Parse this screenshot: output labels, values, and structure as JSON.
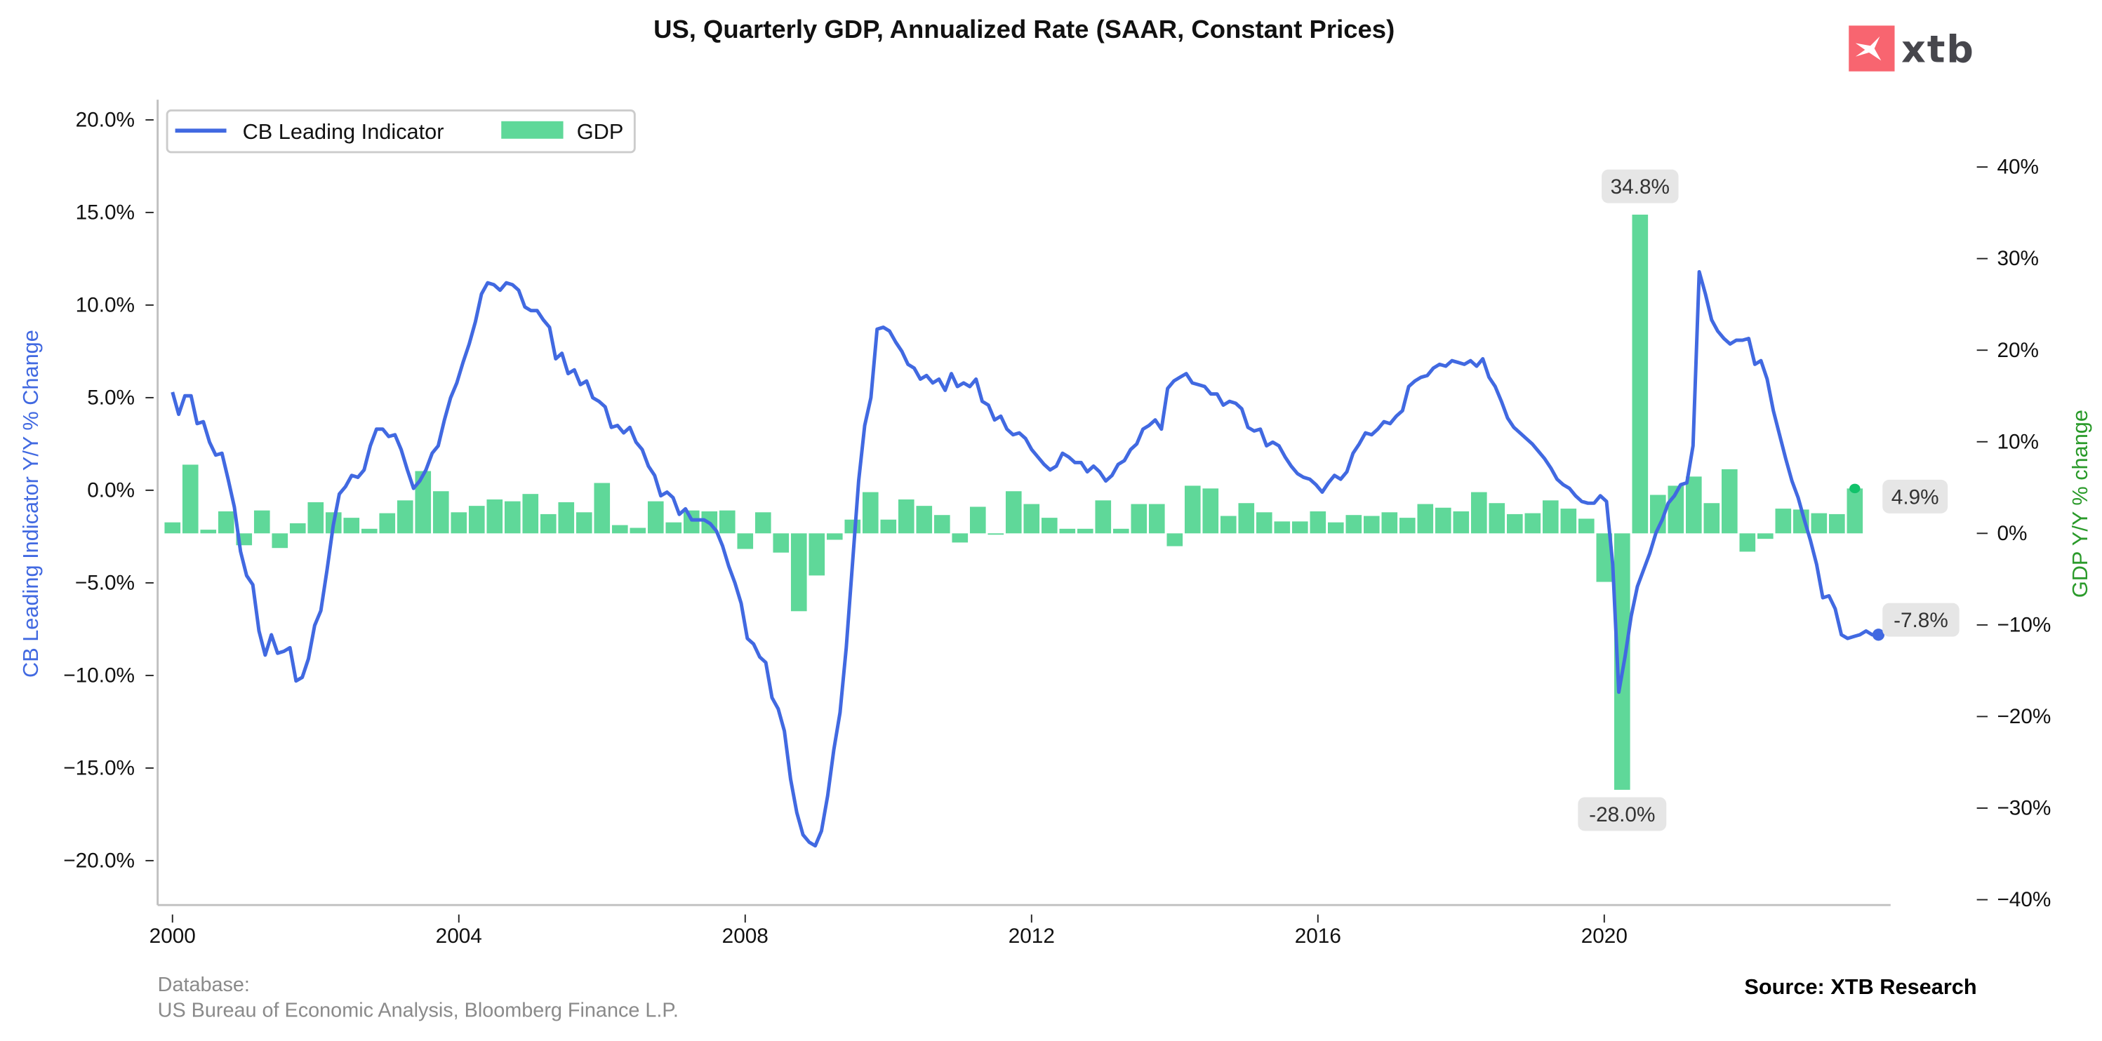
{
  "header": {
    "title": "US, Quarterly GDP, Annualized Rate (SAAR, Constant Prices)"
  },
  "logo": {
    "text": "xtb",
    "brand_color": "#f86570"
  },
  "footer": {
    "database_label": "Database:",
    "database_sources": "US Bureau of Economic Analysis, Bloomberg Finance L.P.",
    "source": "Source: XTB Research"
  },
  "chart_data": {
    "type": "bar+line",
    "title": "US, Quarterly GDP, Annualized Rate (SAAR, Constant Prices)",
    "xlabel": "",
    "ylabel_left": "CB Leading Indicator Y/Y % Change",
    "ylabel_right": "GDP Y/Y % change",
    "ylim_left": [
      -22.5,
      21.0
    ],
    "ylim_right": [
      -40,
      40
    ],
    "yticks_left": [
      "20.0%",
      "15.0%",
      "10.0%",
      "5.0%",
      "0.0%",
      "−5.0%",
      "−10.0%",
      "−15.0%",
      "−20.0%"
    ],
    "yticks_left_values": [
      20,
      15,
      10,
      5,
      0,
      -5,
      -10,
      -15,
      -20
    ],
    "yticks_right": [
      "40%",
      "30%",
      "20%",
      "10%",
      "0%",
      "−10%",
      "−20%",
      "−30%",
      "−40%"
    ],
    "yticks_right_values": [
      40,
      30,
      20,
      10,
      0,
      -10,
      -20,
      -30,
      -40
    ],
    "xlim": [
      2000.0,
      2024.0
    ],
    "xticks": [
      "2000",
      "2004",
      "2008",
      "2012",
      "2016",
      "2020"
    ],
    "xticks_values": [
      2000,
      2004,
      2008,
      2012,
      2016,
      2020
    ],
    "grid": false,
    "legend": {
      "position": "top-left",
      "entries": [
        {
          "name": "CB Leading Indicator",
          "color": "#4169e1",
          "kind": "line"
        },
        {
          "name": "GDP",
          "color": "#5fd899",
          "kind": "bar"
        }
      ]
    },
    "colors": {
      "line": "#4169e1",
      "bars": "#5fd899",
      "last_bar_marker": "#11c26a",
      "left_label": "#4169e1",
      "right_label": "#2a9a2a",
      "annotation_bg": "#e6e6e6"
    },
    "annotations": [
      {
        "text": "34.8%",
        "series": "GDP",
        "x": 2020.5
      },
      {
        "text": "-28.0%",
        "series": "GDP",
        "x": 2020.25
      },
      {
        "text": "4.9%",
        "series": "GDP",
        "x": 2023.5,
        "position": "right-end"
      },
      {
        "text": "-7.8%",
        "series": "CB Leading Indicator",
        "x": 2023.67,
        "position": "right-end"
      }
    ],
    "series": [
      {
        "name": "GDP",
        "axis": "right",
        "x_start": 2000.0,
        "x_step": 0.25,
        "values": [
          1.2,
          7.5,
          0.4,
          2.4,
          -1.3,
          2.5,
          -1.6,
          1.1,
          3.4,
          2.3,
          1.7,
          0.5,
          2.2,
          3.6,
          6.8,
          4.6,
          2.3,
          3.0,
          3.7,
          3.5,
          4.3,
          2.1,
          3.4,
          2.3,
          5.5,
          0.9,
          0.6,
          3.5,
          1.2,
          2.5,
          2.4,
          2.5,
          -1.7,
          2.3,
          -2.1,
          -8.5,
          -4.6,
          -0.7,
          1.5,
          4.5,
          1.5,
          3.7,
          3.0,
          2.0,
          -1.0,
          2.9,
          -0.1,
          4.6,
          3.2,
          1.7,
          0.5,
          0.5,
          3.6,
          0.5,
          3.2,
          3.2,
          -1.4,
          5.2,
          4.9,
          1.9,
          3.3,
          2.3,
          1.3,
          1.3,
          2.4,
          1.2,
          2.0,
          1.9,
          2.3,
          1.7,
          3.2,
          2.8,
          2.4,
          4.5,
          3.3,
          2.1,
          2.2,
          3.6,
          2.7,
          1.6,
          -5.3,
          -28.0,
          34.8,
          4.2,
          5.2,
          6.2,
          3.3,
          7.0,
          -2.0,
          -0.6,
          2.7,
          2.6,
          2.2,
          2.1,
          4.9
        ]
      },
      {
        "name": "CB Leading Indicator",
        "axis": "left",
        "x_start": 2000.0,
        "x_step": 0.08333,
        "values": [
          5.3,
          4.1,
          5.1,
          5.1,
          3.6,
          3.7,
          2.6,
          1.9,
          2.0,
          0.6,
          -0.9,
          -3.3,
          -4.6,
          -5.1,
          -7.6,
          -8.9,
          -7.8,
          -8.8,
          -8.7,
          -8.5,
          -10.3,
          -10.1,
          -9.1,
          -7.3,
          -6.5,
          -4.3,
          -1.9,
          -0.2,
          0.2,
          0.8,
          0.7,
          1.1,
          2.4,
          3.3,
          3.3,
          2.9,
          3.0,
          2.2,
          1.1,
          0.1,
          0.5,
          1.1,
          2.0,
          2.4,
          3.8,
          5.0,
          5.8,
          6.9,
          7.9,
          9.1,
          10.6,
          11.2,
          11.1,
          10.8,
          11.2,
          11.1,
          10.8,
          9.9,
          9.7,
          9.7,
          9.2,
          8.8,
          7.1,
          7.4,
          6.3,
          6.5,
          5.7,
          5.9,
          5.0,
          4.8,
          4.5,
          3.4,
          3.5,
          3.1,
          3.4,
          2.6,
          2.2,
          1.3,
          0.8,
          -0.3,
          -0.1,
          -0.4,
          -1.3,
          -1.0,
          -1.6,
          -1.6,
          -1.6,
          -1.8,
          -2.2,
          -3.0,
          -4.1,
          -5.0,
          -6.1,
          -8.0,
          -8.3,
          -9.0,
          -9.3,
          -11.2,
          -11.8,
          -13.0,
          -15.6,
          -17.4,
          -18.6,
          -19.0,
          -19.2,
          -18.4,
          -16.5,
          -14.0,
          -12.0,
          -8.5,
          -4.0,
          0.5,
          3.5,
          5.0,
          8.7,
          8.8,
          8.6,
          8.0,
          7.5,
          6.8,
          6.6,
          6.0,
          6.2,
          5.8,
          6.0,
          5.4,
          6.3,
          5.6,
          5.8,
          5.6,
          6.0,
          4.8,
          4.6,
          3.8,
          4.0,
          3.3,
          3.0,
          3.1,
          2.8,
          2.2,
          1.8,
          1.4,
          1.1,
          1.3,
          2.0,
          1.8,
          1.5,
          1.5,
          1.0,
          1.3,
          1.0,
          0.5,
          0.8,
          1.4,
          1.6,
          2.2,
          2.5,
          3.3,
          3.5,
          3.8,
          3.3,
          5.5,
          5.9,
          6.1,
          6.3,
          5.8,
          5.7,
          5.6,
          5.2,
          5.2,
          4.6,
          4.8,
          4.7,
          4.4,
          3.4,
          3.2,
          3.3,
          2.4,
          2.6,
          2.4,
          1.8,
          1.3,
          0.9,
          0.7,
          0.6,
          0.3,
          -0.1,
          0.4,
          0.8,
          0.6,
          1.0,
          2.0,
          2.5,
          3.1,
          3.0,
          3.3,
          3.7,
          3.6,
          4.0,
          4.3,
          5.6,
          5.9,
          6.1,
          6.2,
          6.6,
          6.8,
          6.7,
          7.0,
          6.9,
          6.8,
          7.0,
          6.7,
          7.1,
          6.1,
          5.6,
          4.8,
          3.9,
          3.4,
          3.1,
          2.8,
          2.5,
          2.1,
          1.7,
          1.2,
          0.6,
          0.3,
          0.1,
          -0.3,
          -0.6,
          -0.7,
          -0.7,
          -0.3,
          -0.6,
          -4.0,
          -10.9,
          -9.0,
          -6.8,
          -5.2,
          -4.3,
          -3.4,
          -2.3,
          -1.6,
          -0.7,
          -0.3,
          0.3,
          0.4,
          2.4,
          11.8,
          10.6,
          9.2,
          8.6,
          8.2,
          7.9,
          8.1,
          8.1,
          8.2,
          6.8,
          7.0,
          6.0,
          4.3,
          3.0,
          1.7,
          0.5,
          -0.4,
          -1.6,
          -2.7,
          -4.0,
          -5.8,
          -5.7,
          -6.4,
          -7.8,
          -8.0,
          -7.9,
          -7.8,
          -7.6,
          -7.8,
          -7.8
        ]
      }
    ]
  }
}
